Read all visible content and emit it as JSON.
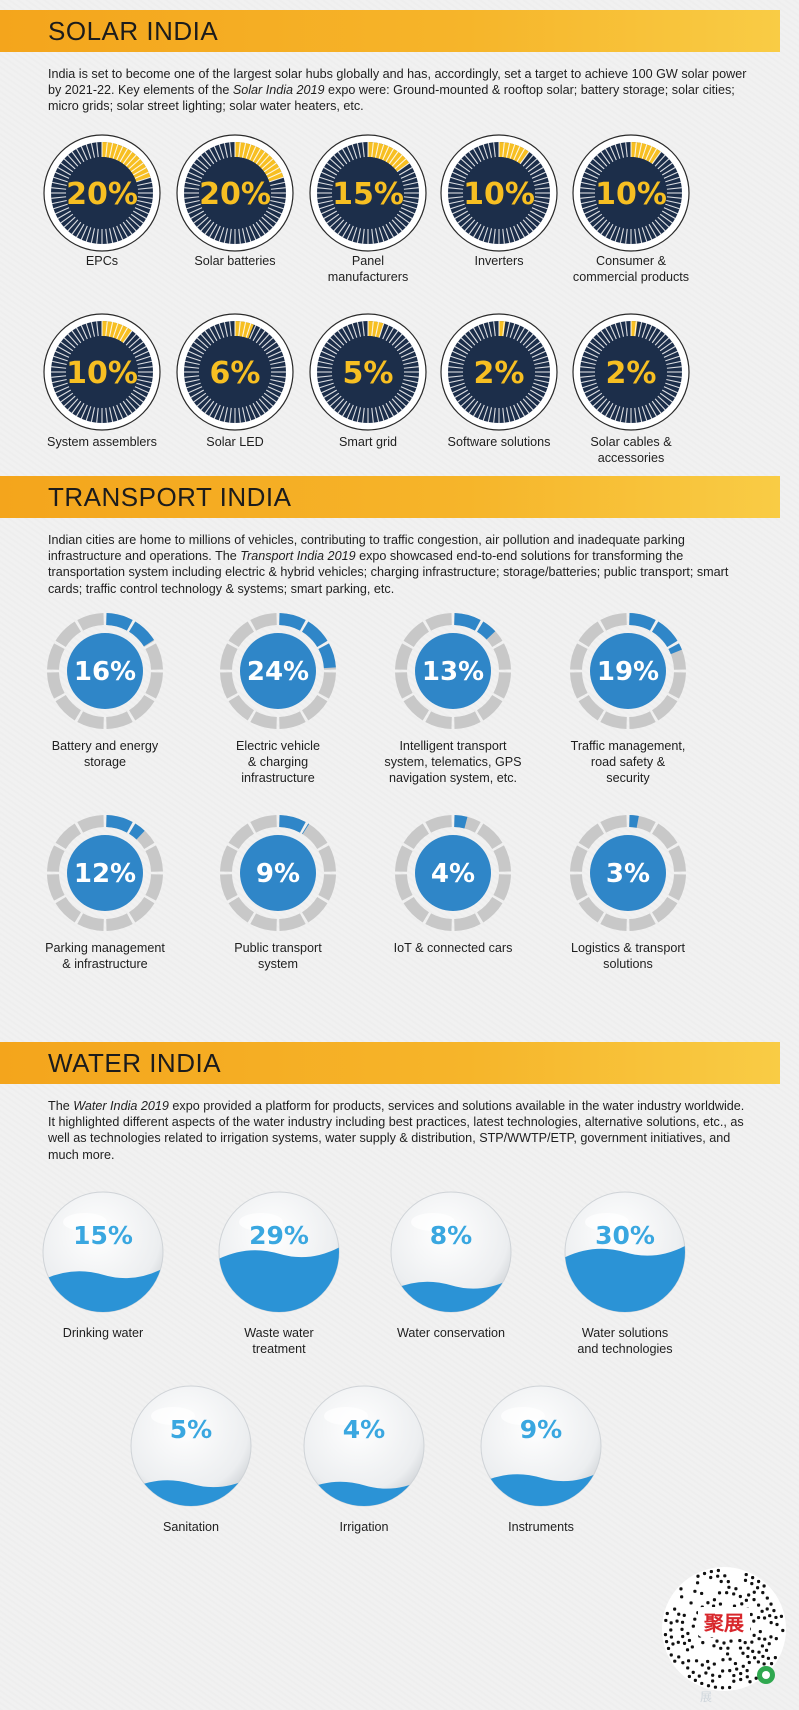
{
  "colors": {
    "banner": "#f6b52a",
    "solar_fill": "#f7bf22",
    "solar_dark": "#1c2e4a",
    "transport_fill": "#2f86c8",
    "transport_gray": "#c8c8c8",
    "water_fill": "#2b93d6",
    "water_text": "#3aa7e0"
  },
  "solar": {
    "title": "SOLAR INDIA",
    "text_before": "India is set to become one of the largest solar hubs globally and has, accordingly, set a target to achieve 100 GW solar power by 2021-22. Key elements of the ",
    "text_italic": "Solar India 2019",
    "text_after": " expo were: Ground-mounted & rooftop solar; battery storage; solar cities; micro grids; solar street lighting; solar water heaters, etc.",
    "items": [
      {
        "value": 20,
        "label_text": "20%",
        "label": "EPCs"
      },
      {
        "value": 20,
        "label_text": "20%",
        "label": "Solar batteries"
      },
      {
        "value": 15,
        "label_text": "15%",
        "label": "Panel\nmanufacturers"
      },
      {
        "value": 10,
        "label_text": "10%",
        "label": "Inverters"
      },
      {
        "value": 10,
        "label_text": "10%",
        "label": "Consumer &\ncommercial products"
      },
      {
        "value": 10,
        "label_text": "10%",
        "label": "System assemblers"
      },
      {
        "value": 6,
        "label_text": "6%",
        "label": "Solar LED"
      },
      {
        "value": 5,
        "label_text": "5%",
        "label": "Smart grid"
      },
      {
        "value": 2,
        "label_text": "2%",
        "label": "Software solutions"
      },
      {
        "value": 2,
        "label_text": "2%",
        "label": "Solar cables &\naccessories"
      }
    ]
  },
  "transport": {
    "title": "TRANSPORT INDIA",
    "text_before": "Indian cities are home to millions of vehicles, contributing to traffic congestion, air pollution and inadequate parking infrastructure and operations. The ",
    "text_italic": "Transport India 2019",
    "text_after": " expo showcased end-to-end solutions for transforming the transportation system including electric & hybrid vehicles; charging infrastructure; storage/batteries; public transport; smart cards; traffic control technology & systems; smart parking, etc.",
    "items": [
      {
        "value": 16,
        "label_text": "16%",
        "label": "Battery and energy\nstorage"
      },
      {
        "value": 24,
        "label_text": "24%",
        "label": "Electric vehicle\n& charging\ninfrastructure"
      },
      {
        "value": 13,
        "label_text": "13%",
        "label": "Intelligent transport\nsystem, telematics, GPS\nnavigation system, etc."
      },
      {
        "value": 19,
        "label_text": "19%",
        "label": "Traffic management,\nroad safety &\nsecurity"
      },
      {
        "value": 12,
        "label_text": "12%",
        "label": "Parking management\n& infrastructure"
      },
      {
        "value": 9,
        "label_text": "9%",
        "label": "Public transport\nsystem"
      },
      {
        "value": 4,
        "label_text": "4%",
        "label": "IoT & connected cars"
      },
      {
        "value": 3,
        "label_text": "3%",
        "label": "Logistics & transport\nsolutions"
      }
    ]
  },
  "water": {
    "title": "WATER INDIA",
    "text_before": "The ",
    "text_italic": "Water India 2019",
    "text_after": " expo provided a platform for products, services and solutions available in the water industry worldwide. It highlighted different aspects of the water industry including best practices, latest technologies, alternative solutions, etc., as well as technologies related to irrigation systems, water supply & distribution, STP/WWTP/ETP, government initiatives, and much more.",
    "items": [
      {
        "value": 15,
        "label_text": "15%",
        "label": "Drinking water"
      },
      {
        "value": 29,
        "label_text": "29%",
        "label": "Waste water\ntreatment"
      },
      {
        "value": 8,
        "label_text": "8%",
        "label": "Water conservation"
      },
      {
        "value": 30,
        "label_text": "30%",
        "label": "Water solutions\nand technologies"
      },
      {
        "value": 5,
        "label_text": "5%",
        "label": "Sanitation"
      },
      {
        "value": 4,
        "label_text": "4%",
        "label": "Irrigation"
      },
      {
        "value": 9,
        "label_text": "9%",
        "label": "Instruments"
      }
    ]
  },
  "qr_logo": "聚展",
  "side_word": "展"
}
